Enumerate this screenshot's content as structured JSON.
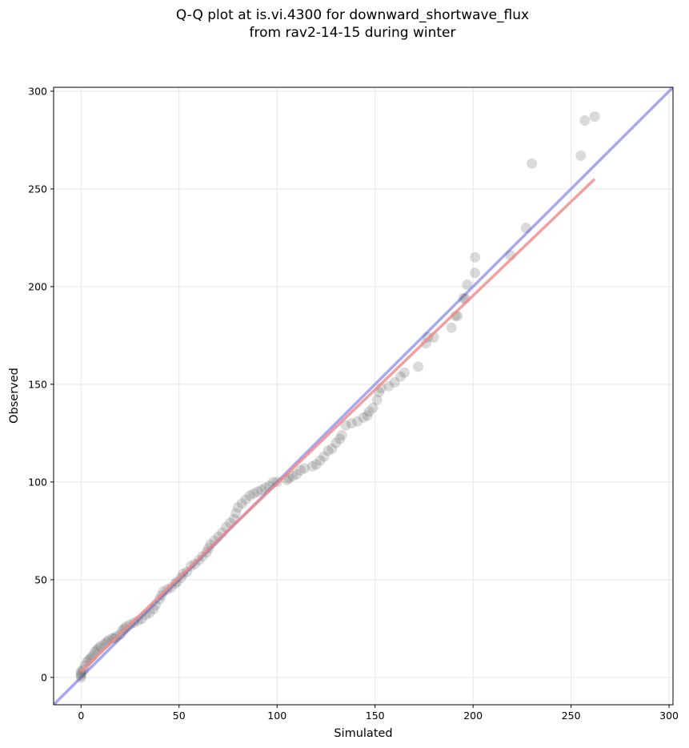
{
  "chart_data": {
    "type": "scatter",
    "title_line1": "Q-Q plot at is.vi.4300 for downward_shortwave_flux",
    "title_line2": "from rav2-14-15 during winter",
    "xlabel": "Simulated",
    "ylabel": "Observed",
    "xlim": [
      -14,
      302
    ],
    "ylim": [
      -14,
      302
    ],
    "xticks": [
      0,
      50,
      100,
      150,
      200,
      250,
      300
    ],
    "yticks": [
      0,
      50,
      100,
      150,
      200,
      250,
      300
    ],
    "grid": true,
    "reference_line": {
      "color": "#9999ee",
      "from": [
        -14,
        -14
      ],
      "to": [
        302,
        302
      ]
    },
    "fit_line": {
      "color": "#ee8888",
      "from": [
        0,
        3
      ],
      "to": [
        262,
        255
      ]
    },
    "point_color": "#555555",
    "quantiles": [
      [
        0,
        0
      ],
      [
        0,
        1
      ],
      [
        0,
        2
      ],
      [
        0,
        3
      ],
      [
        1,
        4
      ],
      [
        2,
        6
      ],
      [
        3,
        8
      ],
      [
        4,
        9
      ],
      [
        5,
        10
      ],
      [
        6,
        11
      ],
      [
        7,
        13
      ],
      [
        8,
        14
      ],
      [
        9,
        15
      ],
      [
        10,
        16
      ],
      [
        12,
        17
      ],
      [
        13,
        18
      ],
      [
        14,
        19
      ],
      [
        16,
        20
      ],
      [
        17,
        20
      ],
      [
        18,
        21
      ],
      [
        20,
        22
      ],
      [
        21,
        24
      ],
      [
        22,
        25
      ],
      [
        23,
        26
      ],
      [
        25,
        27
      ],
      [
        27,
        28
      ],
      [
        29,
        29
      ],
      [
        31,
        30
      ],
      [
        33,
        32
      ],
      [
        35,
        33
      ],
      [
        37,
        35
      ],
      [
        38,
        37
      ],
      [
        40,
        40
      ],
      [
        41,
        42
      ],
      [
        42,
        44
      ],
      [
        44,
        45
      ],
      [
        46,
        46
      ],
      [
        48,
        48
      ],
      [
        49,
        49
      ],
      [
        51,
        51
      ],
      [
        52,
        53
      ],
      [
        54,
        54
      ],
      [
        56,
        57
      ],
      [
        58,
        58
      ],
      [
        60,
        60
      ],
      [
        62,
        62
      ],
      [
        64,
        64
      ],
      [
        65,
        66
      ],
      [
        66,
        68
      ],
      [
        68,
        70
      ],
      [
        70,
        72
      ],
      [
        72,
        74
      ],
      [
        74,
        77
      ],
      [
        76,
        79
      ],
      [
        78,
        81
      ],
      [
        79,
        84
      ],
      [
        80,
        87
      ],
      [
        82,
        89
      ],
      [
        84,
        91
      ],
      [
        86,
        93
      ],
      [
        88,
        94
      ],
      [
        90,
        95
      ],
      [
        92,
        96
      ],
      [
        94,
        97
      ],
      [
        96,
        98
      ],
      [
        98,
        100
      ],
      [
        100,
        100
      ],
      [
        105,
        101
      ],
      [
        106,
        102
      ],
      [
        108,
        103
      ],
      [
        110,
        104
      ],
      [
        112,
        106
      ],
      [
        114,
        107
      ],
      [
        118,
        108
      ],
      [
        120,
        109
      ],
      [
        122,
        111
      ],
      [
        124,
        113
      ],
      [
        126,
        116
      ],
      [
        128,
        117
      ],
      [
        130,
        120
      ],
      [
        132,
        122
      ],
      [
        133,
        124
      ],
      [
        135,
        129
      ],
      [
        138,
        130
      ],
      [
        141,
        131
      ],
      [
        144,
        133
      ],
      [
        146,
        134
      ],
      [
        147,
        136
      ],
      [
        149,
        138
      ],
      [
        151,
        142
      ],
      [
        152,
        146
      ],
      [
        153,
        148
      ],
      [
        157,
        149
      ],
      [
        160,
        151
      ],
      [
        163,
        154
      ],
      [
        165,
        156
      ],
      [
        172,
        159
      ],
      [
        176,
        171
      ],
      [
        177,
        174
      ],
      [
        180,
        174
      ],
      [
        189,
        179
      ],
      [
        191,
        185
      ],
      [
        192,
        185
      ],
      [
        195,
        194
      ],
      [
        196,
        194
      ],
      [
        197,
        201
      ],
      [
        201,
        207
      ],
      [
        201,
        215
      ],
      [
        219,
        216
      ],
      [
        227,
        230
      ],
      [
        230,
        263
      ],
      [
        255,
        267
      ],
      [
        257,
        285
      ],
      [
        262,
        287
      ]
    ]
  }
}
